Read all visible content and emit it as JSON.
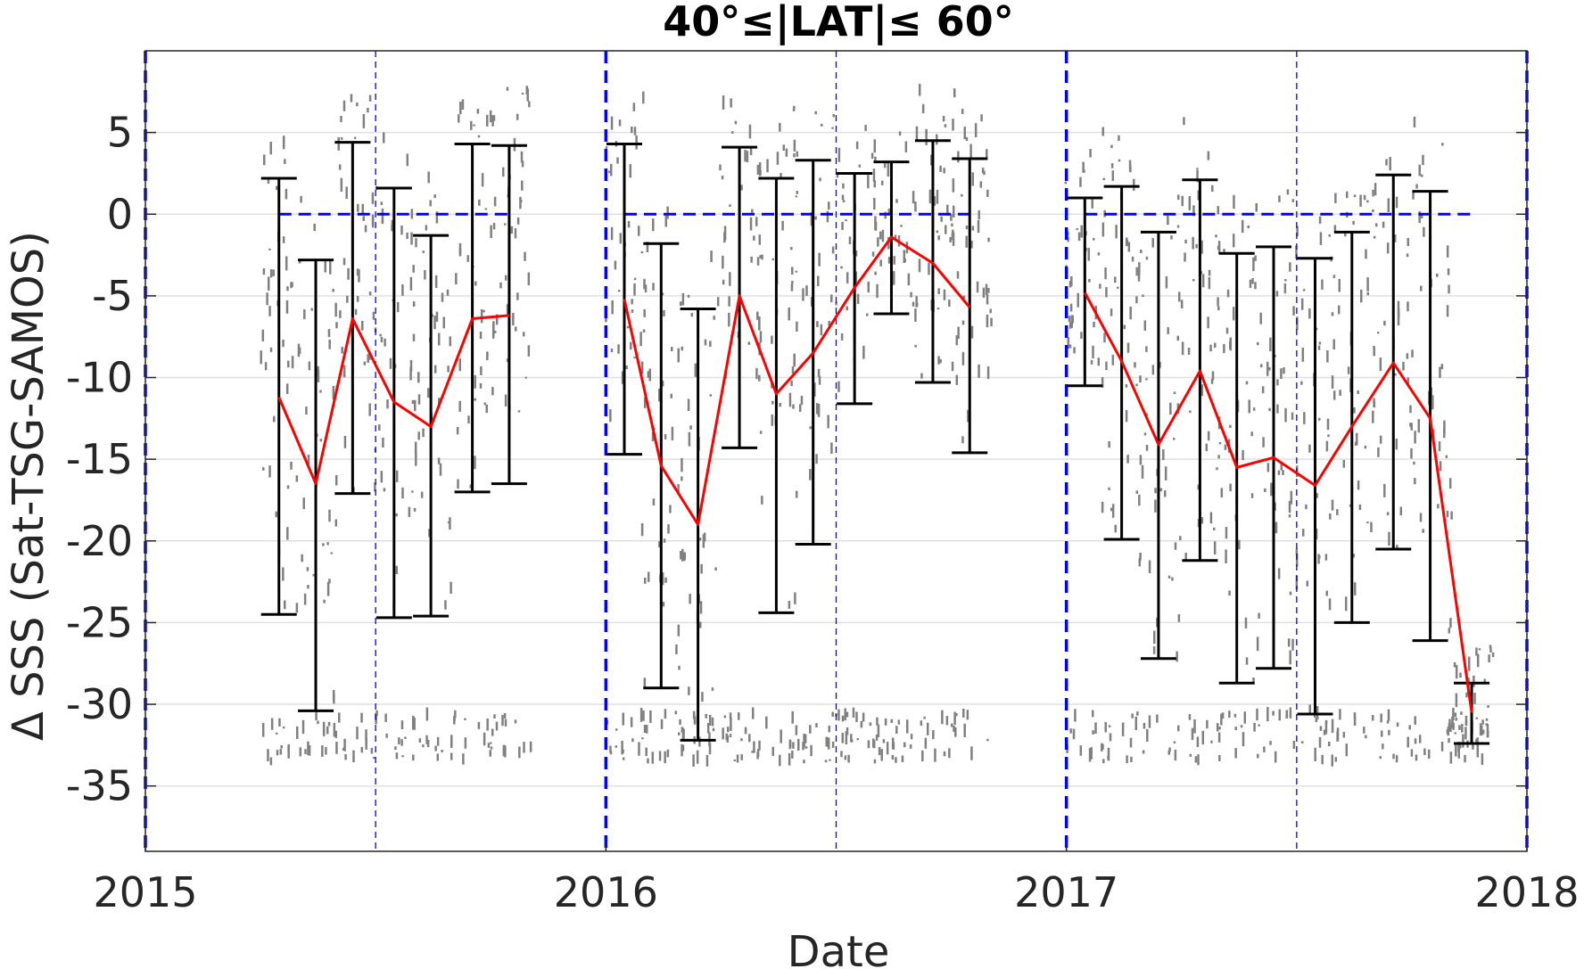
{
  "chart_data": {
    "type": "line",
    "title": "40°≤|LAT|≤ 60°",
    "xlabel": "Date",
    "ylabel": "Δ SSS (Sat-TSG-SAMOS)",
    "xlim": [
      2015,
      2018
    ],
    "ylim": [
      -39,
      10
    ],
    "grid": "horizontal",
    "x_ticks": [
      "2015",
      "2016",
      "2017",
      "2018"
    ],
    "y_ticks": [
      5,
      0,
      -5,
      -10,
      -15,
      -20,
      -25,
      -30,
      -35
    ],
    "year_boundaries": [
      2015,
      2016,
      2017,
      2018
    ],
    "mid_year_lines": [
      2015.5,
      2016.5,
      2017.5
    ],
    "zero_line_segments": [
      [
        2015.29,
        2015.79
      ],
      [
        2016.04,
        2016.79
      ],
      [
        2017.04,
        2017.88
      ]
    ],
    "series": [
      {
        "name": "",
        "color": "#ff0000",
        "role": "monthly mean with std error bars",
        "groups": [
          {
            "x": [
              2015.29,
              2015.37,
              2015.45,
              2015.54,
              2015.62,
              2015.71,
              2015.79
            ],
            "y": [
              -11.2,
              -16.5,
              -6.4,
              -11.5,
              -13.0,
              -6.4,
              -6.2
            ],
            "err_high": [
              2.2,
              -2.8,
              4.4,
              1.6,
              -1.3,
              4.3,
              4.2
            ],
            "err_low": [
              -24.5,
              -30.4,
              -17.1,
              -24.7,
              -24.6,
              -17.0,
              -16.5
            ]
          },
          {
            "x": [
              2016.04,
              2016.12,
              2016.2,
              2016.29,
              2016.37,
              2016.45,
              2016.54,
              2016.62,
              2016.71,
              2016.79
            ],
            "y": [
              -5.2,
              -15.4,
              -19.0,
              -5.0,
              -11.0,
              -8.5,
              -4.5,
              -1.4,
              -3.0,
              -5.7
            ],
            "err_high": [
              4.3,
              -1.8,
              -5.8,
              4.1,
              2.2,
              3.3,
              2.5,
              3.2,
              4.5,
              3.4
            ],
            "err_low": [
              -14.7,
              -29.0,
              -32.2,
              -14.3,
              -24.4,
              -20.2,
              -11.6,
              -6.1,
              -10.3,
              -14.6
            ]
          },
          {
            "x": [
              2017.04,
              2017.12,
              2017.2,
              2017.29,
              2017.37,
              2017.45,
              2017.54,
              2017.62,
              2017.71,
              2017.79,
              2017.88
            ],
            "y": [
              -4.8,
              -9.0,
              -14.1,
              -9.6,
              -15.5,
              -14.9,
              -16.6,
              -13.0,
              -9.1,
              -12.5,
              -30.5
            ],
            "err_high": [
              1.0,
              1.7,
              -1.1,
              2.1,
              -2.4,
              -2.0,
              -2.7,
              -1.1,
              2.4,
              1.4,
              -28.7
            ],
            "err_low": [
              -10.5,
              -19.9,
              -27.2,
              -21.2,
              -28.7,
              -27.8,
              -30.6,
              -25.0,
              -20.5,
              -26.1,
              -32.4
            ]
          }
        ]
      }
    ],
    "scatter_color": "#808080"
  }
}
